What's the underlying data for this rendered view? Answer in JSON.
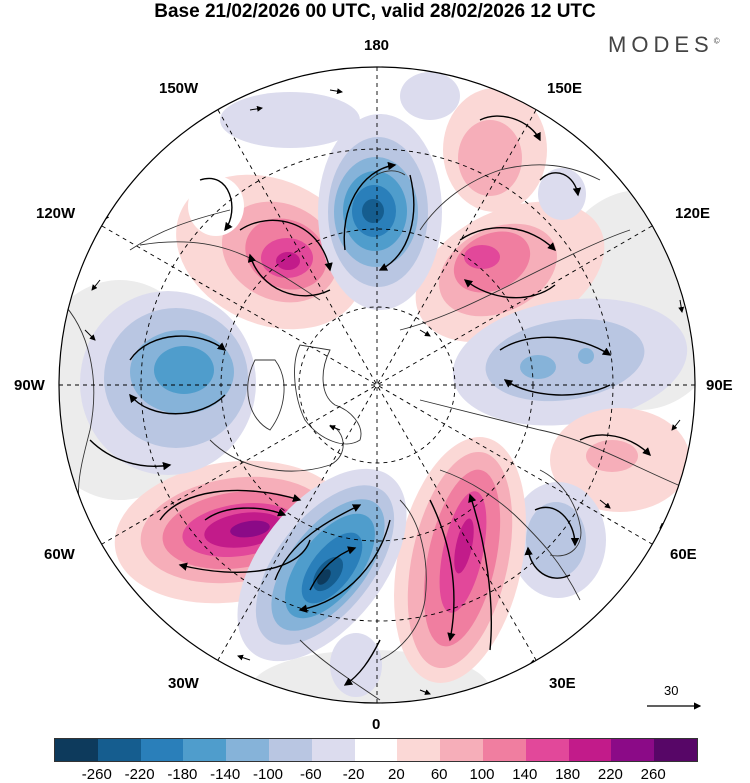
{
  "title": "Base 21/02/2026 00 UTC, valid 28/02/2026 12 UTC",
  "brand": "MODES",
  "brand_mark": "©",
  "longitude_labels": {
    "n180": "180",
    "w150": "150W",
    "e150": "150E",
    "w120": "120W",
    "e120": "120E",
    "w90": "90W",
    "e90": "90E",
    "w60": "60W",
    "e60": "60E",
    "w30": "30W",
    "e30": "30E",
    "s0": "0"
  },
  "reference_vector": "30",
  "colorbar": {
    "colors": [
      "#0d3a5c",
      "#155d8f",
      "#2a7fba",
      "#4f9dcc",
      "#86b3d9",
      "#b9c6e2",
      "#dcdcee",
      "#ffffff",
      "#fbd8d6",
      "#f6aeb9",
      "#f07ea0",
      "#e2489a",
      "#c21b8a",
      "#8b0a87",
      "#570667"
    ],
    "ticks": [
      "-260",
      "-220",
      "-180",
      "-140",
      "-100",
      "-60",
      "-20",
      "20",
      "60",
      "100",
      "140",
      "180",
      "220",
      "260"
    ]
  },
  "anomalies": [
    {
      "id": "pos-atlantic-60w",
      "sign": "positive",
      "peak": "220 to 260"
    },
    {
      "id": "pos-canada-110w",
      "sign": "positive",
      "peak": "180 to 220"
    },
    {
      "id": "neg-atlantic-20w",
      "sign": "negative",
      "peak": "-260 to -220"
    },
    {
      "id": "pos-europe-20e",
      "sign": "positive",
      "peak": "180 to 220"
    },
    {
      "id": "neg-pacific-170w",
      "sign": "negative",
      "peak": "-220 to -180"
    },
    {
      "id": "pos-siberia-140e",
      "sign": "positive",
      "peak": "140 to 180"
    },
    {
      "id": "neg-canada-90w",
      "sign": "negative",
      "peak": "-180 to -140"
    },
    {
      "id": "neg-siberia-90e",
      "sign": "negative",
      "peak": "-140 to -100"
    },
    {
      "id": "pos-asia-75e",
      "sign": "positive",
      "peak": "60 to 100"
    },
    {
      "id": "neg-caspian-45e",
      "sign": "negative",
      "peak": "-100 to -60"
    },
    {
      "id": "pos-pacific-160e",
      "sign": "positive",
      "peak": "60 to 100"
    },
    {
      "id": "neg-alaska-140w",
      "sign": "negative",
      "peak": "-20 to 20"
    }
  ]
}
